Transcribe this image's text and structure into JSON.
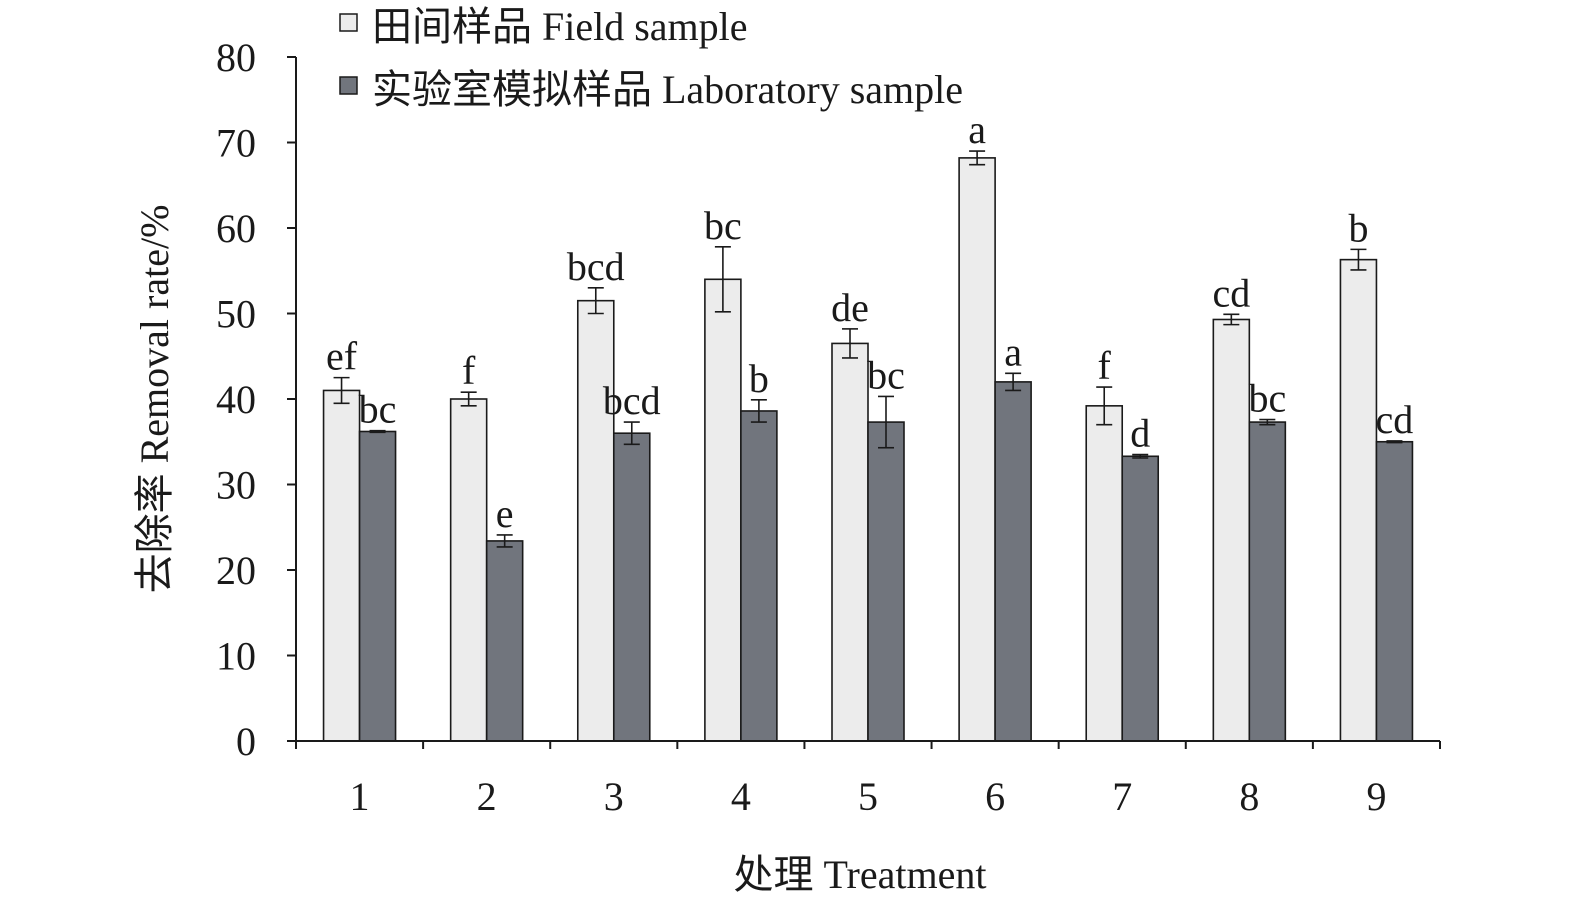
{
  "chart_data": {
    "type": "bar",
    "title": "",
    "xlabel": "处理 Treatment",
    "ylabel": "去除率 Removal rate/%",
    "ylim": [
      0,
      80
    ],
    "yticks": [
      0,
      10,
      20,
      30,
      40,
      50,
      60,
      70,
      80
    ],
    "grid": false,
    "legend_position": "top-left",
    "categories": [
      "1",
      "2",
      "3",
      "4",
      "5",
      "6",
      "7",
      "8",
      "9"
    ],
    "series": [
      {
        "name": "田间样品 Field sample",
        "color": "#ececec",
        "values": [
          41.0,
          40.0,
          51.5,
          54.0,
          46.5,
          68.2,
          39.2,
          49.3,
          56.3
        ],
        "errors": [
          1.5,
          0.8,
          1.5,
          3.8,
          1.7,
          0.8,
          2.2,
          0.6,
          1.2
        ],
        "labels": [
          "ef",
          "f",
          "bcd",
          "bc",
          "de",
          "a",
          "f",
          "cd",
          "b"
        ]
      },
      {
        "name": "实验室模拟样品 Laboratory sample",
        "color": "#71757d",
        "values": [
          36.2,
          23.4,
          36.0,
          38.6,
          37.3,
          42.0,
          33.3,
          37.3,
          35.0
        ],
        "errors": [
          0.1,
          0.7,
          1.3,
          1.3,
          3.0,
          1.0,
          0.2,
          0.3,
          0.1
        ],
        "labels": [
          "bc",
          "e",
          "bcd",
          "b",
          "bc",
          "a",
          "d",
          "bc",
          "cd"
        ]
      }
    ]
  }
}
